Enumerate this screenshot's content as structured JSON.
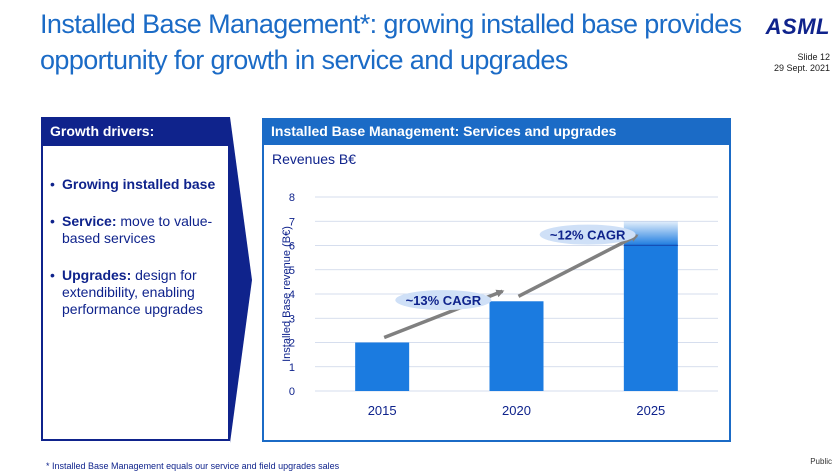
{
  "header": {
    "title": "Installed Base Management*: growing installed base provides opportunity for growth in service and upgrades",
    "logo": "ASML",
    "slide": "Slide 12",
    "date": "29 Sept. 2021"
  },
  "left_panel": {
    "header": "Growth drivers:",
    "items": [
      {
        "bold": "Growing installed base",
        "text": ""
      },
      {
        "bold": "Service:",
        "text": " move to value-based services"
      },
      {
        "bold": "Upgrades:",
        "text": " design for extendibility, enabling performance upgrades"
      }
    ]
  },
  "right_panel": {
    "header": "Installed Base Management: Services and upgrades",
    "revenue_label": "Revenues B€"
  },
  "chart_data": {
    "type": "bar",
    "categories": [
      "2015",
      "2020",
      "2025"
    ],
    "values": [
      2.0,
      3.7,
      6.0
    ],
    "gradient_upper": [
      null,
      null,
      7.0
    ],
    "ylabel": "Installed Base revenue (B€)",
    "ylim": [
      0,
      8
    ],
    "yticks": [
      0,
      1,
      2,
      3,
      4,
      5,
      6,
      7,
      8
    ],
    "grid": true,
    "annotations": [
      {
        "label": "~13% CAGR",
        "from": "2015",
        "to": "2020"
      },
      {
        "label": "~12% CAGR",
        "from": "2020",
        "to": "2025"
      }
    ],
    "colors": {
      "bar": "#1b7be0",
      "grid": "#c9d3e8",
      "arrow": "#808080",
      "label_bg": "#cfe0f7",
      "label_text": "#0f238c"
    }
  },
  "footer": {
    "footnote": "* Installed Base Management equals our service and field upgrades sales",
    "classification": "Public"
  }
}
